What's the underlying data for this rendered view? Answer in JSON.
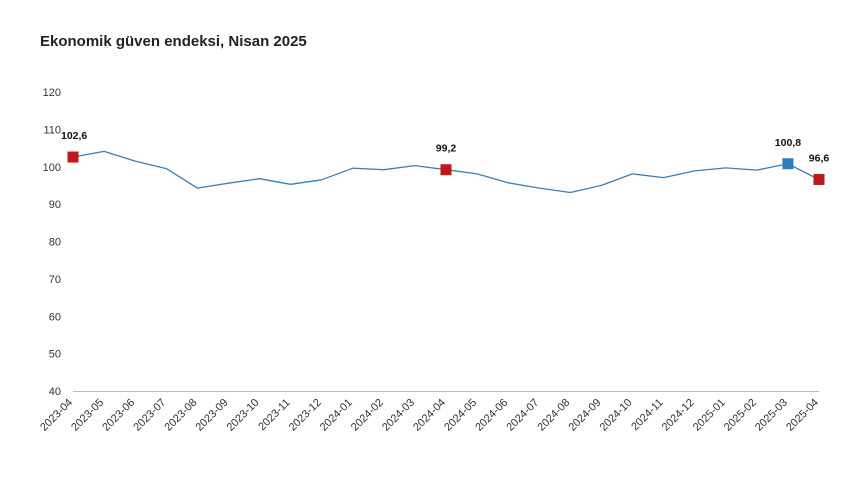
{
  "title": "Ekonomik güven endeksi, Nisan 2025",
  "chart_data": {
    "type": "line",
    "title": "Ekonomik güven endeksi, Nisan 2025",
    "xlabel": "",
    "ylabel": "",
    "ylim": [
      40,
      120
    ],
    "yticks": [
      40,
      50,
      60,
      70,
      80,
      90,
      100,
      110,
      120
    ],
    "categories": [
      "2023-04",
      "2023-05",
      "2023-06",
      "2023-07",
      "2023-08",
      "2023-09",
      "2023-10",
      "2023-11",
      "2023-12",
      "2024-01",
      "2024-02",
      "2024-03",
      "2024-04",
      "2024-05",
      "2024-06",
      "2024-07",
      "2024-08",
      "2024-09",
      "2024-10",
      "2024-11",
      "2024-12",
      "2025-01",
      "2025-02",
      "2025-03",
      "2025-04"
    ],
    "series": [
      {
        "values": [
          102.6,
          104.1,
          101.5,
          99.5,
          94.3,
          95.6,
          96.8,
          95.3,
          96.5,
          99.6,
          99.2,
          100.3,
          99.2,
          98.1,
          95.7,
          94.3,
          93.1,
          95.0,
          98.1,
          97.1,
          98.9,
          99.7,
          99.1,
          100.8,
          96.6
        ],
        "color": "#3a7fb8"
      }
    ],
    "highlights": [
      {
        "category": "2023-04",
        "label": "102,6",
        "color": "#c0161c"
      },
      {
        "category": "2024-04",
        "label": "99,2",
        "color": "#c0161c"
      },
      {
        "category": "2025-03",
        "label": "100,8",
        "color": "#2e7cbf"
      },
      {
        "category": "2025-04",
        "label": "96,6",
        "color": "#c0161c"
      }
    ],
    "grid": false
  }
}
